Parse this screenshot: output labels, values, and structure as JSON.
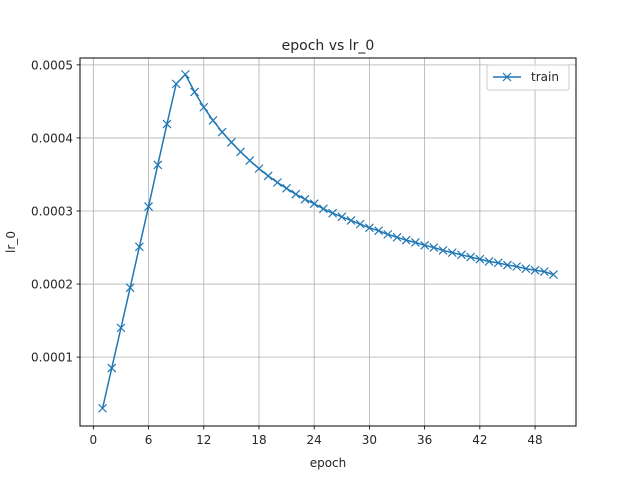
{
  "chart_data": {
    "type": "line",
    "title": "epoch vs lr_0",
    "xlabel": "epoch",
    "ylabel": "lr_0",
    "xlim": [
      -1.45,
      52.45
    ],
    "ylim": [
      5.7e-06,
      0.0005094
    ],
    "xticks": [
      0,
      6,
      12,
      18,
      24,
      30,
      36,
      42,
      48
    ],
    "yticks": [
      0.0001,
      0.0002,
      0.0003,
      0.0004,
      0.0005
    ],
    "ytick_labels": [
      "0.0001",
      "0.0002",
      "0.0003",
      "0.0004",
      "0.0005"
    ],
    "grid": true,
    "legend_position": "upper right",
    "series": [
      {
        "name": "train",
        "color": "#1f77b4",
        "marker": "x",
        "x": [
          1,
          2,
          3,
          4,
          5,
          6,
          7,
          8,
          9,
          10,
          11,
          12,
          13,
          14,
          15,
          16,
          17,
          18,
          19,
          20,
          21,
          22,
          23,
          24,
          25,
          26,
          27,
          28,
          29,
          30,
          31,
          32,
          33,
          34,
          35,
          36,
          37,
          38,
          39,
          40,
          41,
          42,
          43,
          44,
          45,
          46,
          47,
          48,
          49,
          50
        ],
        "values": [
          3e-05,
          8.5e-05,
          0.00014,
          0.000195,
          0.000251,
          0.000306,
          0.000363,
          0.000419,
          0.000474,
          0.000487,
          0.000463,
          0.000442,
          0.000424,
          0.000408,
          0.000394,
          0.000381,
          0.000369,
          0.000358,
          0.000348,
          0.000339,
          0.000331,
          0.000323,
          0.000316,
          0.00031,
          0.000303,
          0.000297,
          0.000292,
          0.000287,
          0.000282,
          0.000277,
          0.000273,
          0.000268,
          0.000264,
          0.00026,
          0.000257,
          0.000253,
          0.00025,
          0.000246,
          0.000243,
          0.00024,
          0.000237,
          0.000234,
          0.000231,
          0.000229,
          0.000226,
          0.000224,
          0.000221,
          0.000219,
          0.000217,
          0.000213
        ]
      }
    ]
  }
}
